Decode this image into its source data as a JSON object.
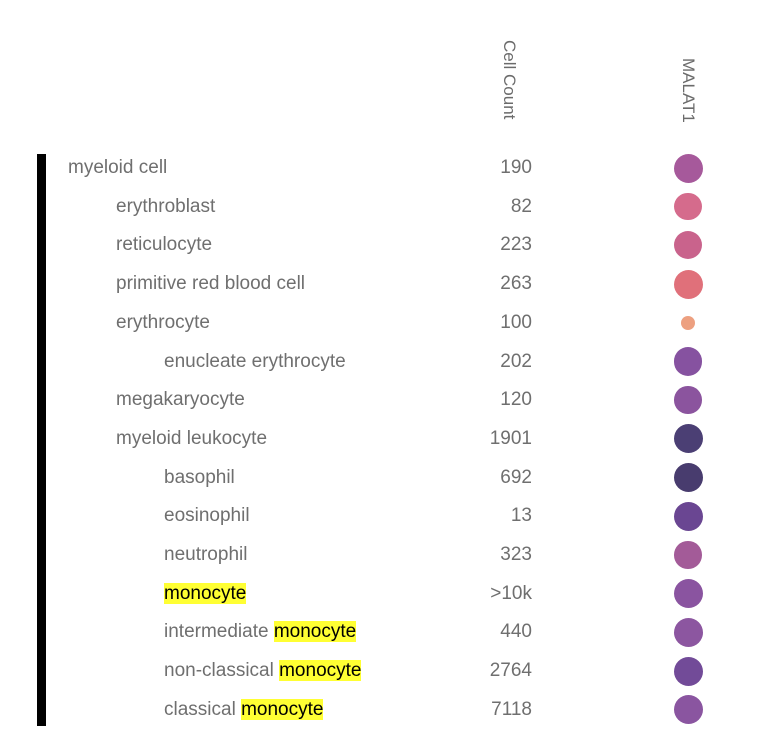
{
  "chart_data": {
    "type": "heatmap",
    "columns": [
      "Cell Count",
      "MALAT1"
    ],
    "rows": [
      {
        "label": "myeloid cell",
        "highlight": "",
        "count": "190",
        "depth": 0,
        "dot_color": "#a6599b",
        "dot_size": 1.0
      },
      {
        "label": "erythroblast",
        "highlight": "",
        "count": "82",
        "depth": 1,
        "dot_color": "#d56b8c",
        "dot_size": 0.95
      },
      {
        "label": "reticulocyte",
        "highlight": "",
        "count": "223",
        "depth": 1,
        "dot_color": "#c9638c",
        "dot_size": 0.97
      },
      {
        "label": "primitive red blood cell",
        "highlight": "",
        "count": "263",
        "depth": 1,
        "dot_color": "#e0707a",
        "dot_size": 1.0
      },
      {
        "label": "erythrocyte",
        "highlight": "",
        "count": "100",
        "depth": 1,
        "dot_color": "#eda080",
        "dot_size": 0.5
      },
      {
        "label": "enucleate erythrocyte",
        "highlight": "",
        "count": "202",
        "depth": 2,
        "dot_color": "#8652a0",
        "dot_size": 0.98
      },
      {
        "label": "megakaryocyte",
        "highlight": "",
        "count": "120",
        "depth": 1,
        "dot_color": "#8b549e",
        "dot_size": 0.95
      },
      {
        "label": "myeloid leukocyte",
        "highlight": "",
        "count": "1901",
        "depth": 1,
        "dot_color": "#4b3f74",
        "dot_size": 1.0
      },
      {
        "label": "basophil",
        "highlight": "",
        "count": "692",
        "depth": 2,
        "dot_color": "#483c6e",
        "dot_size": 1.0
      },
      {
        "label": "eosinophil",
        "highlight": "",
        "count": "13",
        "depth": 2,
        "dot_color": "#6a4692",
        "dot_size": 1.0
      },
      {
        "label": "neutrophil",
        "highlight": "",
        "count": "323",
        "depth": 2,
        "dot_color": "#a35b98",
        "dot_size": 0.95
      },
      {
        "label": "",
        "highlight": "monocyte",
        "count": ">10k",
        "depth": 2,
        "dot_color": "#8a54a0",
        "dot_size": 1.0
      },
      {
        "label": "intermediate ",
        "highlight": "monocyte",
        "count": "440",
        "depth": 2,
        "dot_color": "#8c56a0",
        "dot_size": 1.0
      },
      {
        "label": "non-classical ",
        "highlight": "monocyte",
        "count": "2764",
        "depth": 2,
        "dot_color": "#724b98",
        "dot_size": 1.0
      },
      {
        "label": "classical ",
        "highlight": "monocyte",
        "count": "7118",
        "depth": 2,
        "dot_color": "#8a55a0",
        "dot_size": 1.0
      }
    ]
  }
}
